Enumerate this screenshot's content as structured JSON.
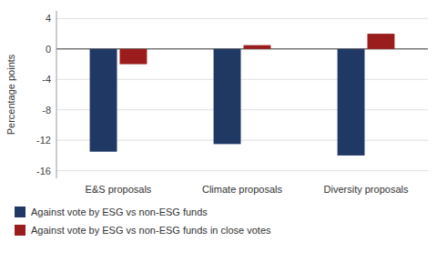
{
  "chart_data": {
    "type": "bar",
    "categories": [
      "E&S proposals",
      "Climate proposals",
      "Diversity proposals"
    ],
    "series": [
      {
        "name": "Against vote by ESG vs non-ESG funds",
        "color": "#1F3864",
        "values": [
          -13.5,
          -12.5,
          -14.0
        ]
      },
      {
        "name": "Against vote by ESG vs non-ESG funds in close votes",
        "color": "#9B1C1C",
        "values": [
          -2.0,
          0.5,
          2.0
        ]
      }
    ],
    "ylabel": "Percentage points",
    "ylim": [
      -17,
      5
    ],
    "yticks": [
      4,
      0,
      -4,
      -8,
      -12,
      -16
    ],
    "grid": true,
    "legend": "bottom"
  }
}
